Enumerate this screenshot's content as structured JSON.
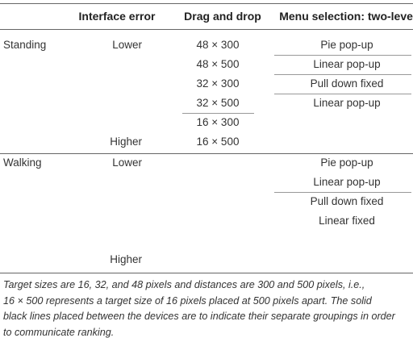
{
  "table": {
    "header": [
      "Interface error",
      "Drag and drop",
      "Menu selection: two-level"
    ],
    "groups": [
      {
        "device": "Standing",
        "levels": [
          "Lower",
          "Higher"
        ],
        "drag": [
          "48 × 300",
          "48 × 500",
          "32 × 300",
          "32 × 500",
          "16 × 300",
          "16 × 500"
        ],
        "menu": [
          "Pie pop-up",
          "Linear pop-up",
          "Pull down fixed",
          "Linear pop-up"
        ]
      },
      {
        "device": "Walking",
        "levels": [
          "Lower",
          "Higher"
        ],
        "menu": [
          "Pie pop-up",
          "Linear pop-up",
          "Pull down fixed",
          "Linear fixed"
        ]
      }
    ]
  },
  "note": [
    "Target sizes are 16, 32, and 48 pixels and distances are 300 and 500 pixels, i.e.,",
    "16 × 500 represents a target size of 16 pixels placed at 500 pixels apart. The solid",
    "black lines placed between the devices are to indicate their separate groupings in order",
    "to communicate ranking."
  ]
}
